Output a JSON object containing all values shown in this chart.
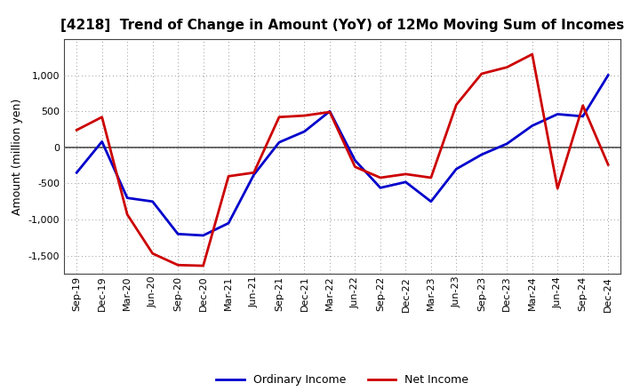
{
  "title": "[4218]  Trend of Change in Amount (YoY) of 12Mo Moving Sum of Incomes",
  "ylabel": "Amount (million yen)",
  "x_labels": [
    "Sep-19",
    "Dec-19",
    "Mar-20",
    "Jun-20",
    "Sep-20",
    "Dec-20",
    "Mar-21",
    "Jun-21",
    "Sep-21",
    "Dec-21",
    "Mar-22",
    "Jun-22",
    "Sep-22",
    "Dec-22",
    "Mar-23",
    "Jun-23",
    "Sep-23",
    "Dec-23",
    "Mar-24",
    "Jun-24",
    "Sep-24",
    "Dec-24"
  ],
  "ordinary_income": [
    -350,
    80,
    -700,
    -750,
    -1200,
    -1220,
    -1050,
    -380,
    70,
    220,
    500,
    -180,
    -560,
    -480,
    -750,
    -300,
    -100,
    50,
    300,
    460,
    430,
    1000
  ],
  "net_income": [
    240,
    420,
    -930,
    -1470,
    -1630,
    -1640,
    -400,
    -350,
    420,
    440,
    490,
    -270,
    -420,
    -370,
    -420,
    590,
    1020,
    1110,
    1290,
    -570,
    580,
    -240
  ],
  "ordinary_color": "#0000cc",
  "net_color": "#cc0000",
  "ylim_min": -1750,
  "ylim_max": 1500,
  "yticks": [
    -1500,
    -1000,
    -500,
    0,
    500,
    1000
  ],
  "background_color": "#ffffff",
  "grid_color": "#999999",
  "line_width": 2.0,
  "title_fontsize": 11,
  "ylabel_fontsize": 9,
  "tick_fontsize": 8
}
